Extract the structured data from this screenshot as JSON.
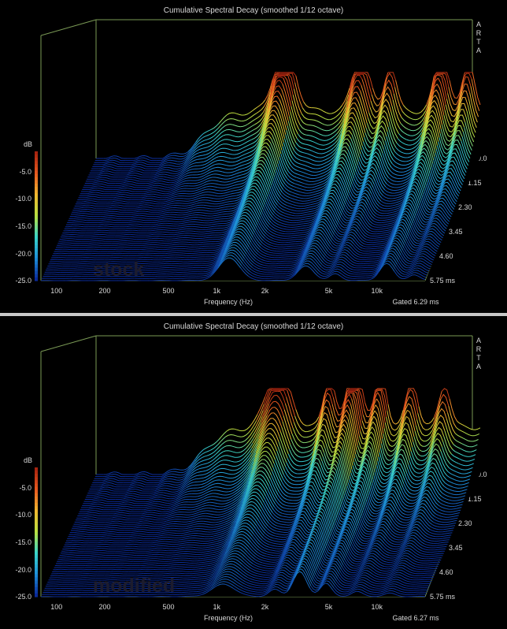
{
  "colors": {
    "background": "#000000",
    "frame": "#7a9a55",
    "text": "#d8d8d8",
    "label_text": "#1c1c2e",
    "colorbar": [
      "#0a2a9a",
      "#1e8fd8",
      "#39d3c8",
      "#b8e040",
      "#f0b830",
      "#e85a20",
      "#a82410"
    ]
  },
  "chart_data": [
    {
      "type": "waterfall",
      "title": "Cumulative Spectral Decay (smoothed 1/12 octave)",
      "xlabel": "Frequency (Hz)",
      "ylabel": "dB",
      "x_scale": "log",
      "xlim": [
        80,
        20000
      ],
      "x_ticks": [
        "100",
        "200",
        "500",
        "1k",
        "2k",
        "5k",
        "10k"
      ],
      "y_ticks": [
        "-5.0",
        "-10.0",
        "-15.0",
        "-20.0",
        "-25.0"
      ],
      "z_ticks": [
        "0.0",
        "1.15",
        "2.30",
        "3.45",
        "4.60",
        "5.75 ms"
      ],
      "ylim_db": [
        -25,
        0
      ],
      "time_ms": [
        0,
        5.75
      ],
      "slices": 60,
      "watermark": "ARTA",
      "note": "Gated 6.29 ms",
      "label": "stock",
      "peaks": [
        {
          "f": 1200,
          "amp": 0.78,
          "decay": 0.85,
          "w": 0.09
        },
        {
          "f": 3600,
          "amp": 0.7,
          "decay": 0.7,
          "w": 0.07
        },
        {
          "f": 5500,
          "amp": 0.55,
          "decay": 0.55,
          "w": 0.05
        },
        {
          "f": 11500,
          "amp": 0.72,
          "decay": 0.75,
          "w": 0.06
        },
        {
          "f": 17000,
          "amp": 0.6,
          "decay": 0.5,
          "w": 0.05
        }
      ]
    },
    {
      "type": "waterfall",
      "title": "Cumulative Spectral Decay (smoothed 1/12 octave)",
      "xlabel": "Frequency (Hz)",
      "ylabel": "dB",
      "x_scale": "log",
      "xlim": [
        80,
        20000
      ],
      "x_ticks": [
        "100",
        "200",
        "500",
        "1k",
        "2k",
        "5k",
        "10k"
      ],
      "y_ticks": [
        "-5.0",
        "-10.0",
        "-15.0",
        "-20.0",
        "-25.0"
      ],
      "z_ticks": [
        "0.0",
        "1.15",
        "2.30",
        "3.45",
        "4.60",
        "5.75 ms"
      ],
      "ylim_db": [
        -25,
        0
      ],
      "time_ms": [
        0,
        5.75
      ],
      "slices": 60,
      "watermark": "ARTA",
      "note": "Gated 6.27 ms",
      "label": "modified",
      "peaks": [
        {
          "f": 1100,
          "amp": 0.7,
          "decay": 0.65,
          "w": 0.1
        },
        {
          "f": 2300,
          "amp": 0.6,
          "decay": 0.55,
          "w": 0.05
        },
        {
          "f": 3300,
          "amp": 0.85,
          "decay": 0.85,
          "w": 0.06
        },
        {
          "f": 4800,
          "amp": 0.65,
          "decay": 0.7,
          "w": 0.05
        },
        {
          "f": 7500,
          "amp": 0.55,
          "decay": 0.5,
          "w": 0.05
        },
        {
          "f": 12000,
          "amp": 0.5,
          "decay": 0.45,
          "w": 0.05
        }
      ]
    }
  ]
}
